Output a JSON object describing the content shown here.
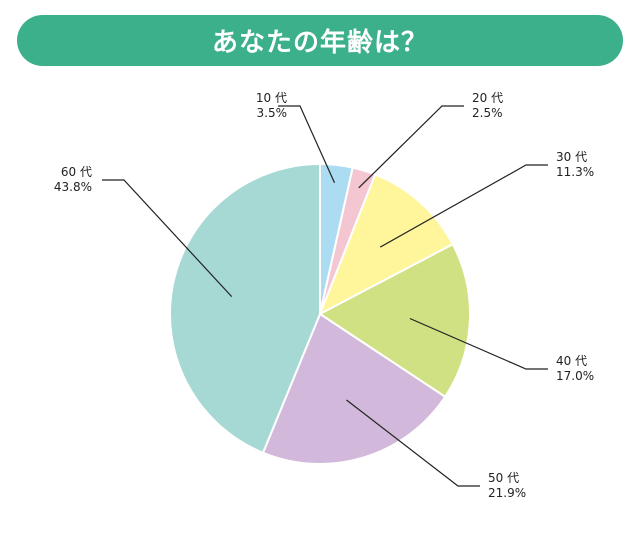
{
  "chart_data": {
    "type": "pie",
    "title": "あなたの年齢は？",
    "categories": [
      "10 代",
      "20 代",
      "30 代",
      "40 代",
      "50 代",
      "60 代"
    ],
    "values": [
      3.5,
      2.5,
      11.3,
      17.0,
      21.9,
      43.8
    ],
    "value_labels": [
      "3.5%",
      "2.5%",
      "11.3%",
      "17.0%",
      "21.9%",
      "43.8%"
    ],
    "colors": [
      "#acdcf1",
      "#f3c6d1",
      "#fff59b",
      "#cfe182",
      "#d2b8da",
      "#a6d8d4"
    ],
    "start": "12 o'clock",
    "direction": "clockwise",
    "legend": "none"
  }
}
